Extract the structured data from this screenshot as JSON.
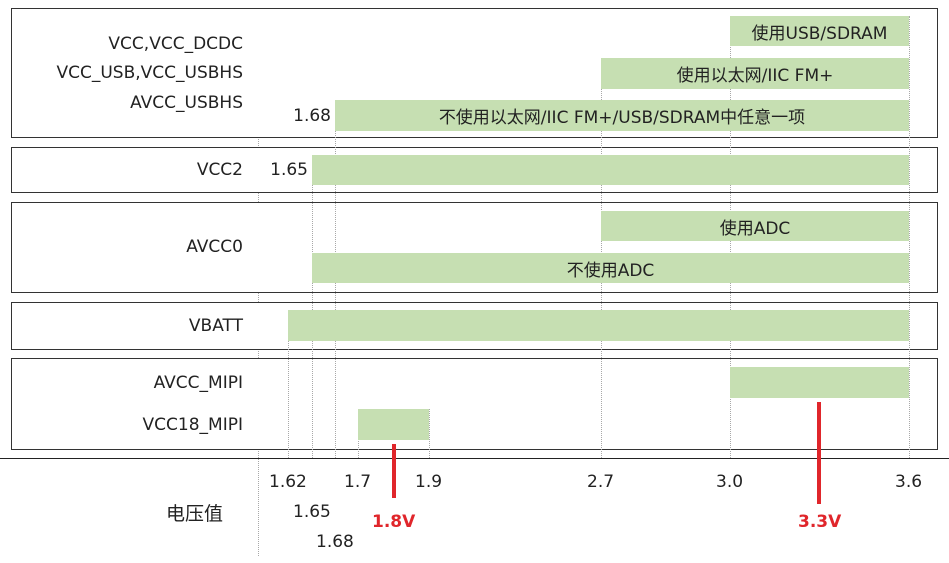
{
  "axis_title": "电压值",
  "ticks": [
    {
      "value": 1.62,
      "label": "1.62",
      "row": 0
    },
    {
      "value": 1.65,
      "label": "1.65",
      "row": 1
    },
    {
      "value": 1.68,
      "label": "1.68",
      "row": 2
    },
    {
      "value": 1.7,
      "label": "1.7",
      "row": 0
    },
    {
      "value": 1.9,
      "label": "1.9",
      "row": 0
    },
    {
      "value": 2.7,
      "label": "2.7",
      "row": 0
    },
    {
      "value": 3.0,
      "label": "3.0",
      "row": 0
    },
    {
      "value": 3.6,
      "label": "3.6",
      "row": 0
    }
  ],
  "markers": [
    {
      "value": 1.8,
      "label": "1.8V"
    },
    {
      "value": 3.3,
      "label": "3.3V"
    }
  ],
  "groups": [
    {
      "labels": [
        "VCC,VCC_DCDC",
        "VCC_USB,VCC_USBHS",
        "AVCC_USBHS"
      ],
      "bars": [
        {
          "start": 3.0,
          "end": 3.6,
          "text": "使用USB/SDRAM"
        },
        {
          "start": 2.7,
          "end": 3.6,
          "text": "使用以太网/IIC FM+"
        },
        {
          "start": 1.68,
          "end": 3.6,
          "text": "不使用以太网/IIC FM+/USB/SDRAM中任意一项",
          "start_label": "1.68"
        }
      ]
    },
    {
      "labels": [
        "VCC2"
      ],
      "bars": [
        {
          "start": 1.65,
          "end": 3.6,
          "text": "",
          "start_label": "1.65"
        }
      ]
    },
    {
      "labels": [
        "AVCC0"
      ],
      "bars": [
        {
          "start": 2.7,
          "end": 3.6,
          "text": "使用ADC"
        },
        {
          "start": 1.65,
          "end": 3.6,
          "text": "不使用ADC"
        }
      ]
    },
    {
      "labels": [
        "VBATT"
      ],
      "bars": [
        {
          "start": 1.62,
          "end": 3.6,
          "text": ""
        }
      ]
    },
    {
      "labels": [
        "AVCC_MIPI",
        "VCC18_MIPI"
      ],
      "bars": [
        {
          "start": 3.0,
          "end": 3.6,
          "text": ""
        },
        {
          "start": 1.7,
          "end": 1.9,
          "text": ""
        }
      ]
    }
  ],
  "colors": {
    "bar": "#c6dfb2",
    "marker": "#e0262b",
    "border": "#333333"
  }
}
